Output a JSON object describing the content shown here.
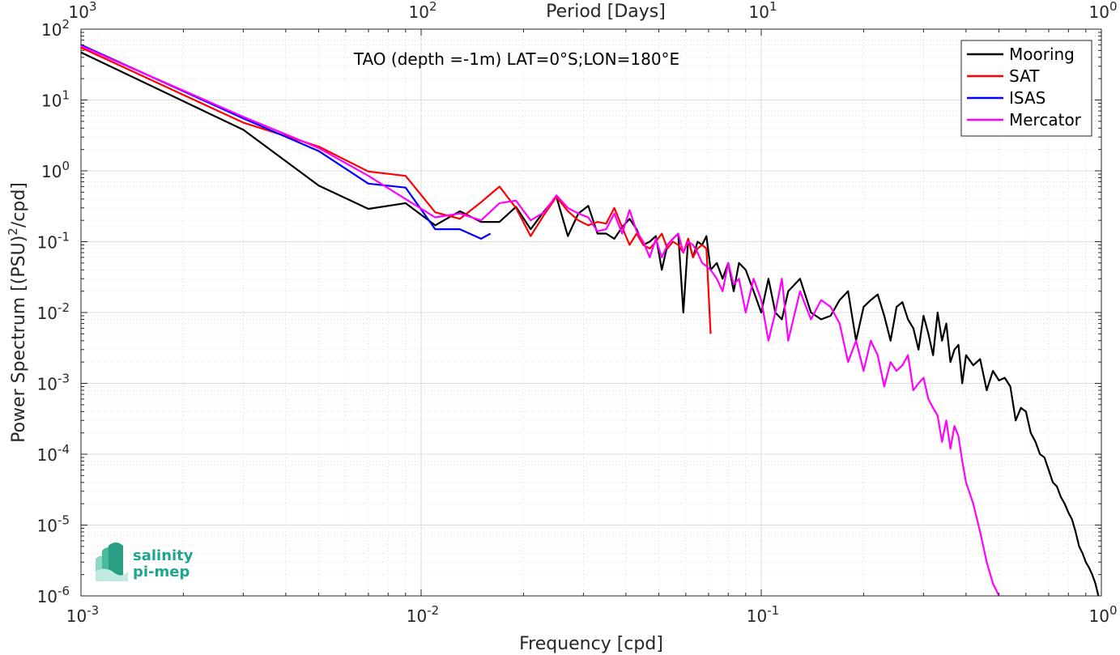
{
  "chart_data": {
    "type": "line",
    "title": "TAO (depth =-1m) LAT=0°S;LON=180°E",
    "xlabel": "Frequency [cpd]",
    "ylabel": "Power Spectrum [(PSU)²/cpd]",
    "top_xlabel": "Period [Days]",
    "xscale": "log",
    "yscale": "log",
    "xlim": [
      0.001,
      1
    ],
    "ylim": [
      1e-06,
      100
    ],
    "grid": true,
    "legend_position": "top-right",
    "x_ticks": [
      {
        "base": "10",
        "exp": "-3",
        "value": 0.001
      },
      {
        "base": "10",
        "exp": "-2",
        "value": 0.01
      },
      {
        "base": "10",
        "exp": "-1",
        "value": 0.1
      },
      {
        "base": "10",
        "exp": "0",
        "value": 1
      }
    ],
    "y_ticks": [
      {
        "base": "10",
        "exp": "-6",
        "value": 1e-06
      },
      {
        "base": "10",
        "exp": "-5",
        "value": 1e-05
      },
      {
        "base": "10",
        "exp": "-4",
        "value": 0.0001
      },
      {
        "base": "10",
        "exp": "-3",
        "value": 0.001
      },
      {
        "base": "10",
        "exp": "-2",
        "value": 0.01
      },
      {
        "base": "10",
        "exp": "-1",
        "value": 0.1
      },
      {
        "base": "10",
        "exp": "0",
        "value": 1
      },
      {
        "base": "10",
        "exp": "1",
        "value": 10
      },
      {
        "base": "10",
        "exp": "2",
        "value": 100
      }
    ],
    "top_ticks": [
      {
        "base": "10",
        "exp": "3",
        "value": 0.001
      },
      {
        "base": "10",
        "exp": "2",
        "value": 0.01
      },
      {
        "base": "10",
        "exp": "1",
        "value": 0.1
      },
      {
        "base": "10",
        "exp": "0",
        "value": 1
      }
    ],
    "series": [
      {
        "name": "Mooring",
        "color": "#000000",
        "x": [
          0.001,
          0.003,
          0.005,
          0.007,
          0.009,
          0.011,
          0.013,
          0.015,
          0.017,
          0.019,
          0.021,
          0.023,
          0.025,
          0.027,
          0.029,
          0.031,
          0.033,
          0.035,
          0.037,
          0.039,
          0.041,
          0.043,
          0.045,
          0.047,
          0.049,
          0.051,
          0.053,
          0.055,
          0.057,
          0.059,
          0.061,
          0.063,
          0.065,
          0.067,
          0.069,
          0.071,
          0.074,
          0.077,
          0.08,
          0.083,
          0.086,
          0.09,
          0.095,
          0.1,
          0.105,
          0.11,
          0.115,
          0.12,
          0.13,
          0.14,
          0.15,
          0.16,
          0.17,
          0.18,
          0.19,
          0.2,
          0.21,
          0.22,
          0.23,
          0.24,
          0.25,
          0.26,
          0.27,
          0.28,
          0.29,
          0.3,
          0.31,
          0.32,
          0.33,
          0.34,
          0.35,
          0.36,
          0.37,
          0.38,
          0.39,
          0.4,
          0.42,
          0.44,
          0.46,
          0.48,
          0.5,
          0.52,
          0.54,
          0.56,
          0.58,
          0.6,
          0.62,
          0.64,
          0.66,
          0.68,
          0.7,
          0.72,
          0.74,
          0.76,
          0.78,
          0.8,
          0.82,
          0.84,
          0.86,
          0.88,
          0.9,
          0.92,
          0.94,
          0.96,
          0.98
        ],
        "y": [
          47,
          3.8,
          0.62,
          0.29,
          0.35,
          0.17,
          0.27,
          0.19,
          0.19,
          0.31,
          0.15,
          0.27,
          0.43,
          0.12,
          0.25,
          0.32,
          0.13,
          0.13,
          0.11,
          0.16,
          0.21,
          0.15,
          0.09,
          0.1,
          0.12,
          0.04,
          0.09,
          0.11,
          0.13,
          0.01,
          0.11,
          0.06,
          0.1,
          0.09,
          0.12,
          0.04,
          0.05,
          0.03,
          0.05,
          0.02,
          0.05,
          0.04,
          0.02,
          0.01,
          0.03,
          0.01,
          0.008,
          0.02,
          0.03,
          0.01,
          0.008,
          0.009,
          0.015,
          0.02,
          0.004,
          0.012,
          0.015,
          0.018,
          0.009,
          0.004,
          0.012,
          0.014,
          0.008,
          0.006,
          0.003,
          0.009,
          0.005,
          0.0025,
          0.01,
          0.004,
          0.007,
          0.002,
          0.003,
          0.0035,
          0.001,
          0.0025,
          0.0018,
          0.0022,
          0.0008,
          0.0015,
          0.0011,
          0.0012,
          0.0009,
          0.0003,
          0.00045,
          0.0004,
          0.0002,
          0.00015,
          0.0001,
          9e-05,
          6e-05,
          4e-05,
          3.5e-05,
          2.5e-05,
          2e-05,
          1.5e-05,
          1.2e-05,
          8e-06,
          5e-06,
          4e-06,
          3e-06,
          2.5e-06,
          2e-06,
          1.5e-06,
          1e-06
        ]
      },
      {
        "name": "SAT",
        "color": "#ff0000",
        "x": [
          0.001,
          0.003,
          0.005,
          0.007,
          0.009,
          0.011,
          0.013,
          0.015,
          0.017,
          0.019,
          0.021,
          0.023,
          0.025,
          0.027,
          0.029,
          0.031,
          0.033,
          0.035,
          0.037,
          0.039,
          0.041,
          0.043,
          0.045,
          0.047,
          0.049,
          0.051,
          0.053,
          0.055,
          0.057,
          0.059,
          0.061,
          0.063,
          0.065,
          0.067,
          0.069,
          0.071
        ],
        "y": [
          55,
          4.8,
          2.2,
          0.98,
          0.85,
          0.26,
          0.21,
          0.36,
          0.6,
          0.3,
          0.12,
          0.24,
          0.43,
          0.27,
          0.2,
          0.17,
          0.19,
          0.18,
          0.3,
          0.16,
          0.09,
          0.13,
          0.09,
          0.08,
          0.1,
          0.13,
          0.08,
          0.1,
          0.09,
          0.07,
          0.11,
          0.06,
          0.08,
          0.09,
          0.08,
          0.005
        ]
      },
      {
        "name": "ISAS",
        "color": "#0000ff",
        "x": [
          0.001,
          0.003,
          0.005,
          0.007,
          0.009,
          0.011,
          0.013,
          0.015,
          0.016
        ],
        "y": [
          60,
          5.5,
          1.9,
          0.66,
          0.58,
          0.15,
          0.15,
          0.11,
          0.13
        ]
      },
      {
        "name": "Mercator",
        "color": "#ff00ff",
        "x": [
          0.001,
          0.003,
          0.005,
          0.007,
          0.009,
          0.011,
          0.013,
          0.015,
          0.017,
          0.019,
          0.021,
          0.023,
          0.025,
          0.027,
          0.029,
          0.031,
          0.033,
          0.035,
          0.037,
          0.039,
          0.041,
          0.043,
          0.045,
          0.047,
          0.049,
          0.051,
          0.053,
          0.055,
          0.057,
          0.059,
          0.061,
          0.063,
          0.065,
          0.067,
          0.069,
          0.071,
          0.074,
          0.077,
          0.08,
          0.083,
          0.086,
          0.09,
          0.095,
          0.1,
          0.105,
          0.11,
          0.115,
          0.12,
          0.13,
          0.14,
          0.15,
          0.16,
          0.17,
          0.18,
          0.19,
          0.2,
          0.21,
          0.22,
          0.23,
          0.24,
          0.25,
          0.26,
          0.27,
          0.28,
          0.29,
          0.3,
          0.31,
          0.32,
          0.33,
          0.34,
          0.35,
          0.36,
          0.37,
          0.38,
          0.39,
          0.4,
          0.42,
          0.44,
          0.46,
          0.48,
          0.5
        ],
        "y": [
          58,
          5.8,
          2.1,
          0.85,
          0.4,
          0.22,
          0.25,
          0.2,
          0.35,
          0.38,
          0.2,
          0.26,
          0.45,
          0.3,
          0.25,
          0.22,
          0.14,
          0.15,
          0.25,
          0.13,
          0.28,
          0.14,
          0.1,
          0.06,
          0.11,
          0.06,
          0.09,
          0.11,
          0.13,
          0.07,
          0.1,
          0.09,
          0.07,
          0.05,
          0.045,
          0.04,
          0.03,
          0.02,
          0.05,
          0.025,
          0.03,
          0.01,
          0.03,
          0.015,
          0.004,
          0.01,
          0.03,
          0.004,
          0.02,
          0.008,
          0.015,
          0.012,
          0.007,
          0.002,
          0.004,
          0.0015,
          0.004,
          0.0025,
          0.0009,
          0.002,
          0.0015,
          0.0018,
          0.0025,
          0.0008,
          0.001,
          0.0012,
          0.0006,
          0.00045,
          0.00035,
          0.00015,
          0.0003,
          0.00012,
          0.00025,
          0.00018,
          8e-05,
          4e-05,
          2e-05,
          8e-06,
          3e-06,
          1.5e-06,
          1e-06
        ]
      }
    ]
  },
  "logo": {
    "line1": "salinity",
    "line2": "pi-mep"
  }
}
